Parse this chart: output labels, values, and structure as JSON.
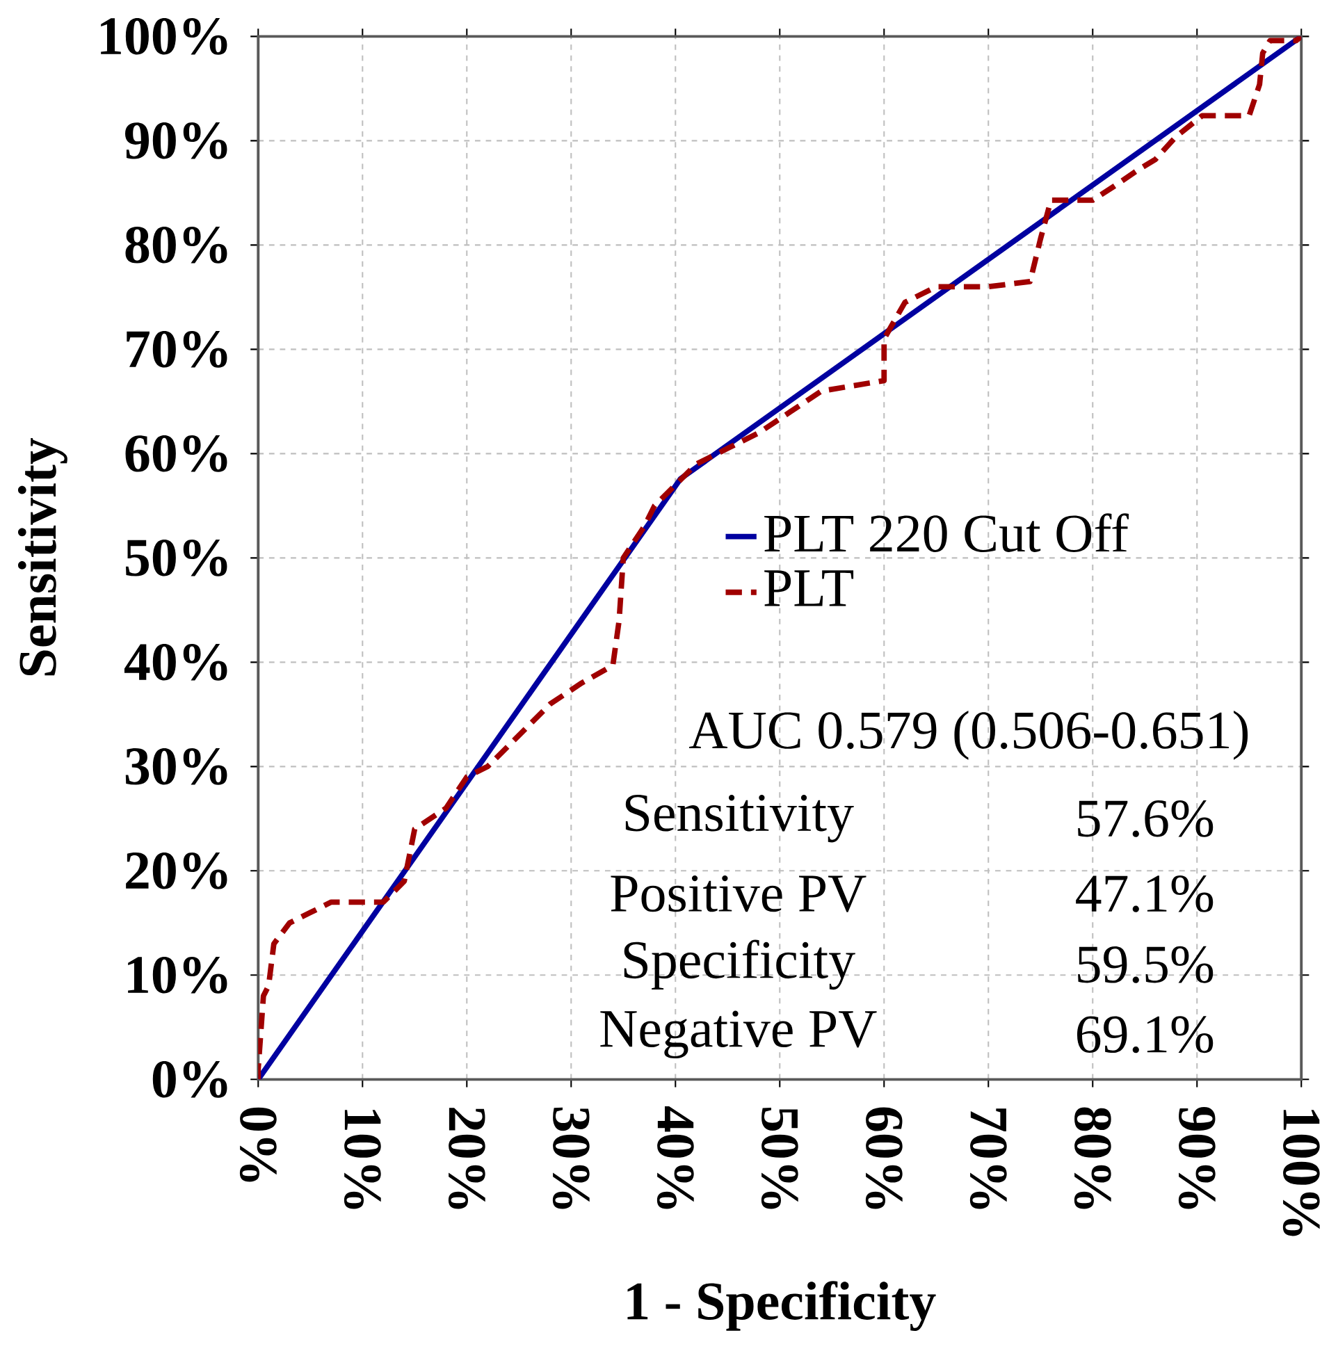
{
  "chart_data": {
    "type": "line",
    "xlabel": "1 - Specificity",
    "ylabel": "Sensitivity",
    "xlim": [
      0,
      100
    ],
    "ylim": [
      0,
      100
    ],
    "xticks": [
      {
        "value": 0,
        "label": "0%"
      },
      {
        "value": 10,
        "label": "10%"
      },
      {
        "value": 20,
        "label": "20%"
      },
      {
        "value": 30,
        "label": "30%"
      },
      {
        "value": 40,
        "label": "40%"
      },
      {
        "value": 50,
        "label": "50%"
      },
      {
        "value": 60,
        "label": "60%"
      },
      {
        "value": 70,
        "label": "70%"
      },
      {
        "value": 80,
        "label": "80%"
      },
      {
        "value": 90,
        "label": "90%"
      },
      {
        "value": 100,
        "label": "100%"
      }
    ],
    "yticks": [
      {
        "value": 0,
        "label": "0%"
      },
      {
        "value": 10,
        "label": "10%"
      },
      {
        "value": 20,
        "label": "20%"
      },
      {
        "value": 30,
        "label": "30%"
      },
      {
        "value": 40,
        "label": "40%"
      },
      {
        "value": 50,
        "label": "50%"
      },
      {
        "value": 60,
        "label": "60%"
      },
      {
        "value": 70,
        "label": "70%"
      },
      {
        "value": 80,
        "label": "80%"
      },
      {
        "value": 90,
        "label": "90%"
      },
      {
        "value": 100,
        "label": "100%"
      }
    ],
    "grid": true,
    "legend": "right",
    "series": [
      {
        "name": "PLT 220 Cut Off",
        "color": "#0000a0",
        "line_style": "solid",
        "x": [
          0,
          40.5,
          100
        ],
        "values": [
          0,
          57.6,
          100
        ]
      },
      {
        "name": "PLT",
        "color": "#a00000",
        "line_style": "dashed",
        "x": [
          0,
          0,
          0.5,
          1,
          1.5,
          3,
          5,
          7,
          12,
          14,
          15,
          18,
          20,
          22,
          24,
          26,
          28,
          31,
          34,
          34.6,
          35,
          37,
          38,
          40,
          42,
          45,
          48,
          51,
          54,
          57,
          60,
          60,
          62,
          65,
          70,
          74,
          75,
          76,
          80,
          82,
          84.5,
          86,
          88,
          90.5,
          95,
          96,
          96.3,
          97,
          99.5,
          100
        ],
        "values": [
          0,
          1,
          8,
          9,
          13,
          15,
          16,
          17,
          17,
          19,
          24,
          26,
          29,
          30,
          32,
          34,
          36,
          38,
          39.7,
          44,
          50,
          53,
          55,
          57,
          59,
          60.5,
          62,
          64,
          66,
          66.5,
          67,
          71,
          74.5,
          76,
          76,
          76.5,
          80.6,
          84.3,
          84.3,
          85.6,
          87.3,
          88.2,
          90.4,
          92.4,
          92.4,
          95.4,
          98.4,
          99.6,
          99.6,
          100
        ]
      }
    ],
    "annotations": [
      "AUC 0.579 (0.506-0.651)",
      "Sensitivity",
      "57.6%",
      "Positive PV",
      "47.1%",
      "Specificity",
      "59.5%",
      "Negative PV",
      "69.1%"
    ]
  }
}
